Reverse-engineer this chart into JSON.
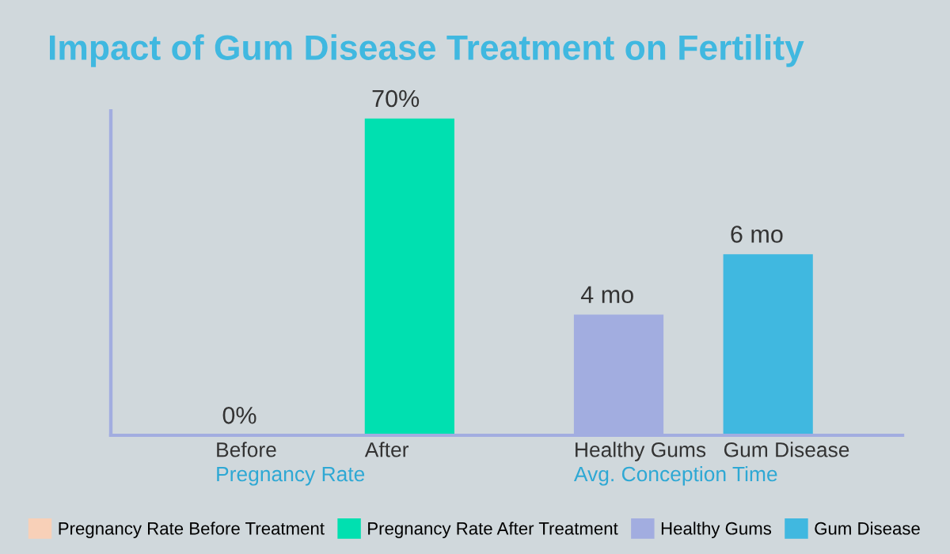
{
  "chart_data": {
    "type": "bar",
    "title": "Impact of Gum Disease Treatment on Fertility",
    "categories": [
      "Before",
      "After",
      "Healthy Gums",
      "Gum Disease"
    ],
    "ylim": [
      0,
      71.7
    ],
    "y2lim": [
      0,
      10.75
    ],
    "series": [
      {
        "name": "Pregnancy Rate Before Treatment",
        "color": "#f8d0b8",
        "values": [
          0,
          null,
          null,
          null
        ],
        "value_labels": [
          "0%",
          null,
          null,
          null
        ]
      },
      {
        "name": "Pregnancy Rate After Treatment",
        "color": "#00e0b0",
        "values": [
          null,
          70,
          null,
          null
        ],
        "value_labels": [
          null,
          "70%",
          null,
          null
        ]
      },
      {
        "name": "Healthy Gums",
        "color": "#a2ade0",
        "axis": "y2",
        "values": [
          null,
          null,
          4,
          null
        ],
        "value_labels": [
          null,
          null,
          "4 mo",
          null
        ]
      },
      {
        "name": "Gum Disease",
        "color": "#40b8e0",
        "axis": "y2",
        "values": [
          null,
          null,
          null,
          6
        ],
        "value_labels": [
          null,
          null,
          null,
          "6 mo"
        ]
      }
    ],
    "annotations": [
      "Pregnancy Rate",
      "Avg. Conception Time"
    ],
    "legend": "bottom"
  }
}
